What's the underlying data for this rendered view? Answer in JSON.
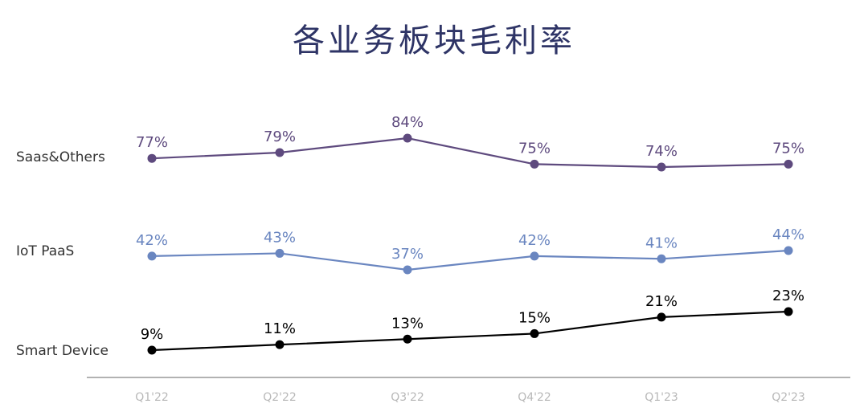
{
  "chart_data": {
    "type": "line",
    "title": "各业务板块毛利率",
    "categories": [
      "Q1'22",
      "Q2'22",
      "Q3'22",
      "Q4'22",
      "Q1'23",
      "Q2'23"
    ],
    "series": [
      {
        "name": "Saas&Others",
        "color": "#5e4a7e",
        "values": [
          77,
          79,
          84,
          75,
          74,
          75
        ],
        "labels": [
          "77%",
          "79%",
          "84%",
          "75%",
          "74%",
          "75%"
        ]
      },
      {
        "name": "IoT PaaS",
        "color": "#6a86c0",
        "values": [
          42,
          43,
          37,
          42,
          41,
          44
        ],
        "labels": [
          "42%",
          "43%",
          "37%",
          "42%",
          "41%",
          "44%"
        ]
      },
      {
        "name": "Smart Device",
        "color": "#000000",
        "values": [
          9,
          11,
          13,
          15,
          21,
          23
        ],
        "labels": [
          "9%",
          "11%",
          "13%",
          "15%",
          "21%",
          "23%"
        ]
      }
    ],
    "unit": "%",
    "grid": false,
    "legend": "left"
  }
}
